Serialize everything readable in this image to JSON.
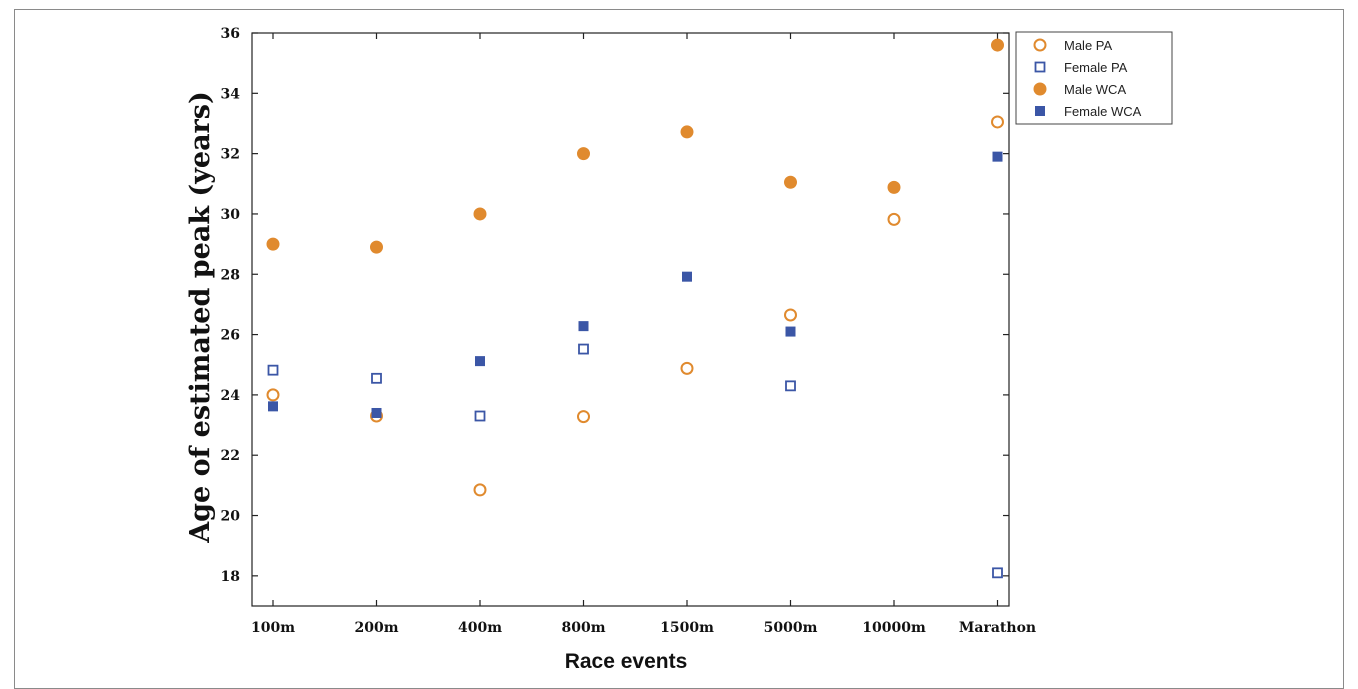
{
  "chart_data": {
    "type": "scatter",
    "title": "",
    "xlabel": "Race events",
    "ylabel": "Age of estimated peak (years)",
    "categories": [
      "100m",
      "200m",
      "400m",
      "800m",
      "1500m",
      "5000m",
      "10000m",
      "Marathon"
    ],
    "ylim": [
      17,
      36
    ],
    "yticks": [
      18,
      20,
      22,
      24,
      26,
      28,
      30,
      32,
      34,
      36
    ],
    "grid": false,
    "legend_position": "top-right",
    "series": [
      {
        "name": "Male PA",
        "marker": "circle-open",
        "color": "#e08a2e",
        "values": [
          24.0,
          23.3,
          20.85,
          23.28,
          24.88,
          26.65,
          29.82,
          33.05
        ]
      },
      {
        "name": "Female PA",
        "marker": "square-open",
        "color": "#3b56a6",
        "values": [
          24.82,
          24.55,
          23.3,
          25.52,
          null,
          24.3,
          null,
          18.1
        ]
      },
      {
        "name": "Male WCA",
        "marker": "circle-filled",
        "color": "#e08a2e",
        "values": [
          29.0,
          28.9,
          30.0,
          32.0,
          32.72,
          31.05,
          30.88,
          35.6
        ]
      },
      {
        "name": "Female WCA",
        "marker": "square-filled",
        "color": "#3b56a6",
        "values": [
          23.62,
          23.4,
          25.12,
          26.28,
          27.92,
          26.1,
          null,
          31.9
        ]
      }
    ]
  }
}
